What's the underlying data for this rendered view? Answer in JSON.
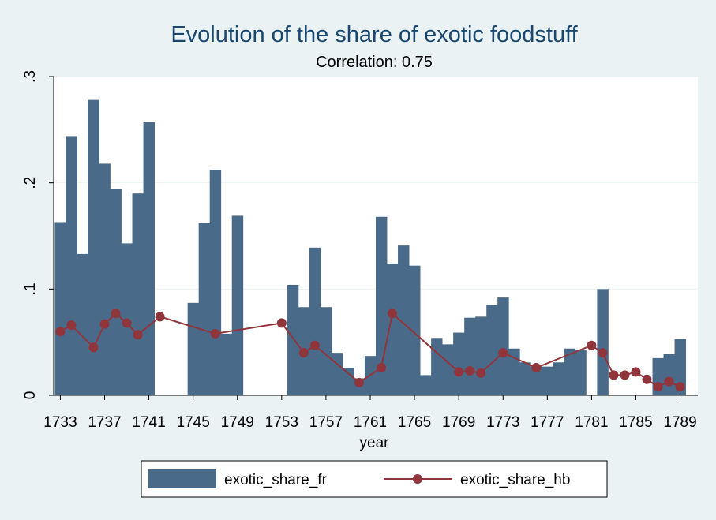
{
  "chart_data": {
    "type": "bar+line",
    "title": "Evolution of the share of exotic foodstuff",
    "subtitle": "Correlation: 0.75",
    "xlabel": "year",
    "ylabel": "",
    "xlim": [
      1732.4,
      1790.6
    ],
    "ylim": [
      0,
      0.3
    ],
    "x_ticks": [
      1733,
      1737,
      1741,
      1745,
      1749,
      1753,
      1757,
      1761,
      1765,
      1769,
      1773,
      1777,
      1781,
      1785,
      1789
    ],
    "y_ticks": [
      {
        "value": 0,
        "label": "0"
      },
      {
        "value": 0.1,
        "label": ".1"
      },
      {
        "value": 0.2,
        "label": ".2"
      },
      {
        "value": 0.3,
        "label": ".3"
      }
    ],
    "grid": true,
    "legend_position": "bottom",
    "series": [
      {
        "name": "exotic_share_fr",
        "kind": "bar",
        "color": "#4a6a8a",
        "points": [
          {
            "x": 1733,
            "y": 0.163
          },
          {
            "x": 1734,
            "y": 0.244
          },
          {
            "x": 1735,
            "y": 0.133
          },
          {
            "x": 1736,
            "y": 0.278
          },
          {
            "x": 1737,
            "y": 0.218
          },
          {
            "x": 1738,
            "y": 0.194
          },
          {
            "x": 1739,
            "y": 0.143
          },
          {
            "x": 1740,
            "y": 0.19
          },
          {
            "x": 1741,
            "y": 0.257
          },
          {
            "x": 1745,
            "y": 0.087
          },
          {
            "x": 1746,
            "y": 0.162
          },
          {
            "x": 1747,
            "y": 0.212
          },
          {
            "x": 1748,
            "y": 0.058
          },
          {
            "x": 1749,
            "y": 0.169
          },
          {
            "x": 1754,
            "y": 0.104
          },
          {
            "x": 1755,
            "y": 0.083
          },
          {
            "x": 1756,
            "y": 0.139
          },
          {
            "x": 1757,
            "y": 0.083
          },
          {
            "x": 1758,
            "y": 0.04
          },
          {
            "x": 1759,
            "y": 0.026
          },
          {
            "x": 1760,
            "y": 0.016
          },
          {
            "x": 1761,
            "y": 0.037
          },
          {
            "x": 1762,
            "y": 0.168
          },
          {
            "x": 1763,
            "y": 0.124
          },
          {
            "x": 1764,
            "y": 0.141
          },
          {
            "x": 1765,
            "y": 0.122
          },
          {
            "x": 1766,
            "y": 0.019
          },
          {
            "x": 1767,
            "y": 0.054
          },
          {
            "x": 1768,
            "y": 0.048
          },
          {
            "x": 1769,
            "y": 0.059
          },
          {
            "x": 1770,
            "y": 0.073
          },
          {
            "x": 1771,
            "y": 0.074
          },
          {
            "x": 1772,
            "y": 0.085
          },
          {
            "x": 1773,
            "y": 0.092
          },
          {
            "x": 1774,
            "y": 0.044
          },
          {
            "x": 1775,
            "y": 0.031
          },
          {
            "x": 1776,
            "y": 0.027
          },
          {
            "x": 1777,
            "y": 0.027
          },
          {
            "x": 1778,
            "y": 0.031
          },
          {
            "x": 1779,
            "y": 0.044
          },
          {
            "x": 1780,
            "y": 0.043
          },
          {
            "x": 1782,
            "y": 0.1
          },
          {
            "x": 1787,
            "y": 0.035
          },
          {
            "x": 1788,
            "y": 0.039
          },
          {
            "x": 1789,
            "y": 0.053
          }
        ]
      },
      {
        "name": "exotic_share_hb",
        "kind": "line",
        "color": "#90353b",
        "points": [
          {
            "x": 1733,
            "y": 0.06
          },
          {
            "x": 1734,
            "y": 0.066
          },
          {
            "x": 1736,
            "y": 0.045
          },
          {
            "x": 1737,
            "y": 0.067
          },
          {
            "x": 1738,
            "y": 0.077
          },
          {
            "x": 1739,
            "y": 0.068
          },
          {
            "x": 1740,
            "y": 0.057
          },
          {
            "x": 1742,
            "y": 0.074
          },
          {
            "x": 1747,
            "y": 0.058
          },
          {
            "x": 1753,
            "y": 0.068
          },
          {
            "x": 1755,
            "y": 0.04
          },
          {
            "x": 1756,
            "y": 0.047
          },
          {
            "x": 1760,
            "y": 0.012
          },
          {
            "x": 1762,
            "y": 0.026
          },
          {
            "x": 1763,
            "y": 0.077
          },
          {
            "x": 1769,
            "y": 0.022
          },
          {
            "x": 1770,
            "y": 0.023
          },
          {
            "x": 1771,
            "y": 0.021
          },
          {
            "x": 1773,
            "y": 0.04
          },
          {
            "x": 1776,
            "y": 0.026
          },
          {
            "x": 1781,
            "y": 0.047
          },
          {
            "x": 1782,
            "y": 0.04
          },
          {
            "x": 1783,
            "y": 0.019
          },
          {
            "x": 1784,
            "y": 0.019
          },
          {
            "x": 1785,
            "y": 0.022
          },
          {
            "x": 1786,
            "y": 0.015
          },
          {
            "x": 1787,
            "y": 0.008
          },
          {
            "x": 1788,
            "y": 0.013
          },
          {
            "x": 1789,
            "y": 0.008
          }
        ]
      }
    ]
  }
}
